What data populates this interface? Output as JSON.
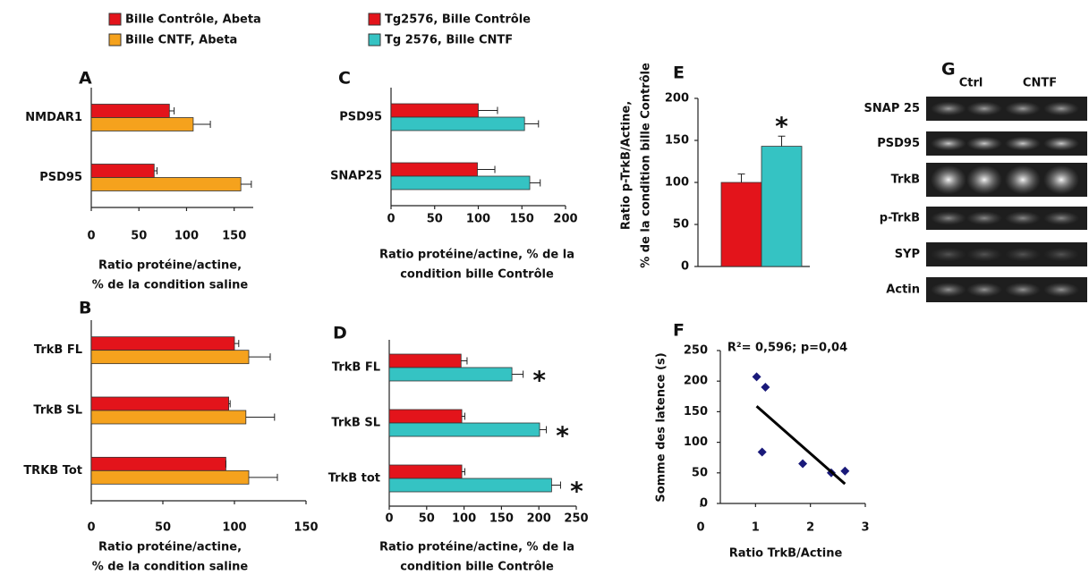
{
  "chart_data": [
    {
      "type": "hbar",
      "label": "A",
      "categories": [
        "NMDAR1",
        "PSD95"
      ],
      "series": [
        {
          "name": "Bille Contrôle, Abeta",
          "color": "#e3141b",
          "values": [
            82,
            66
          ],
          "errors": [
            5,
            3
          ]
        },
        {
          "name": "Bille CNTF, Abeta",
          "color": "#f5a21d",
          "values": [
            107,
            157
          ],
          "errors": [
            18,
            11
          ]
        }
      ],
      "xlim": [
        0,
        170
      ],
      "xticks": [
        0,
        50,
        100,
        150
      ],
      "xlabel": [
        "Ratio protéine/actine,",
        "% de la condition saline"
      ]
    },
    {
      "type": "hbar",
      "label": "B",
      "categories": [
        "TrkB FL",
        "TrkB SL",
        "TRKB Tot"
      ],
      "series": [
        {
          "color": "#e3141b",
          "values": [
            100,
            96,
            94
          ],
          "errors": [
            3,
            1,
            0
          ]
        },
        {
          "color": "#f5a21d",
          "values": [
            110,
            108,
            110
          ],
          "errors": [
            15,
            20,
            20
          ]
        }
      ],
      "xlim": [
        0,
        150
      ],
      "xticks": [
        0,
        50,
        100,
        150
      ],
      "xlabel": [
        "Ratio protéine/actine,",
        "% de la condition saline"
      ]
    },
    {
      "type": "hbar",
      "label": "C",
      "categories": [
        "PSD95",
        "SNAP25"
      ],
      "series": [
        {
          "name": "Tg2576, Bille Contrôle",
          "color": "#e3141b",
          "values": [
            100,
            99
          ],
          "errors": [
            22,
            20
          ]
        },
        {
          "name": "Tg 2576, Bille CNTF",
          "color": "#35c3c3",
          "values": [
            153,
            159
          ],
          "errors": [
            16,
            12
          ]
        }
      ],
      "xlim": [
        0,
        200
      ],
      "xticks": [
        0,
        50,
        100,
        150,
        200
      ],
      "xlabel": [
        "Ratio protéine/actine, % de la",
        "condition bille Contrôle"
      ]
    },
    {
      "type": "hbar",
      "label": "D",
      "categories": [
        "TrkB FL",
        "TrkB SL",
        "TrkB tot"
      ],
      "series": [
        {
          "color": "#e3141b",
          "values": [
            96,
            97,
            97
          ],
          "errors": [
            8,
            4,
            4
          ]
        },
        {
          "color": "#35c3c3",
          "values": [
            164,
            201,
            217
          ],
          "errors": [
            15,
            9,
            12
          ],
          "annotations": [
            "*",
            "*",
            "*"
          ]
        }
      ],
      "xlim": [
        0,
        250
      ],
      "xticks": [
        0,
        50,
        100,
        150,
        200,
        250
      ],
      "xlabel": [
        "Ratio protéine/actine, % de la",
        "condition bille Contrôle"
      ]
    },
    {
      "type": "vbar",
      "label": "E",
      "series": [
        {
          "color": "#e3141b",
          "values": [
            100
          ],
          "errors": [
            10
          ]
        },
        {
          "color": "#35c3c3",
          "values": [
            143
          ],
          "errors": [
            12
          ],
          "annotations": [
            "*"
          ]
        }
      ],
      "ylim": [
        0,
        200
      ],
      "yticks": [
        0,
        50,
        100,
        150,
        200
      ],
      "ylabel": [
        "Ratio p-TrkB/Actine,",
        "% de la condition bille Contrôle"
      ]
    },
    {
      "type": "scatter",
      "label": "F",
      "annotation": "R²= 0,596; p=0,04",
      "x": [
        1.02,
        1.18,
        1.12,
        1.86,
        2.38,
        2.63
      ],
      "y": [
        207,
        190,
        84,
        65,
        50,
        53
      ],
      "color": "#1a1a7a",
      "trendline": {
        "x": [
          1.02,
          2.63
        ],
        "y": [
          159,
          32
        ]
      },
      "xlim": [
        0,
        3
      ],
      "xticks": [
        0,
        1,
        2,
        3
      ],
      "ylim": [
        0,
        250
      ],
      "yticks": [
        0,
        50,
        100,
        150,
        200,
        250
      ],
      "xlabel": "Ratio TrkB/Actine",
      "ylabel": "Somme des latence (s)"
    }
  ],
  "blot": {
    "label": "G",
    "groups": [
      "Ctrl",
      "CNTF"
    ],
    "rows": [
      "SNAP 25",
      "PSD95",
      "TrkB",
      "p-TrkB",
      "SYP",
      "Actin"
    ]
  }
}
